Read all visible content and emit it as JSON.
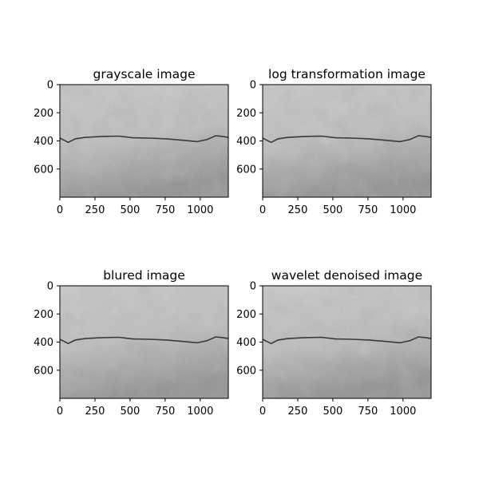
{
  "figure": {
    "background": "#ffffff",
    "panel_colors": {
      "light": "#c9c9c9",
      "dark": "#8c8c8c",
      "crack": "#3a3a3a",
      "axis": "#000000"
    }
  },
  "chart_data": [
    {
      "type": "image",
      "title": "grayscale image",
      "xlabel": "",
      "ylabel": "",
      "xlim": [
        0,
        1200
      ],
      "ylim": [
        800,
        0
      ],
      "xticks": [
        0,
        250,
        500,
        750,
        1000
      ],
      "yticks": [
        0,
        200,
        400,
        600
      ],
      "xtick_labels": [
        "0",
        "250",
        "500",
        "750",
        "1000"
      ],
      "ytick_labels": [
        "0",
        "200",
        "400",
        "600"
      ],
      "grid": false,
      "crack_path": [
        [
          0,
          380
        ],
        [
          60,
          410
        ],
        [
          110,
          385
        ],
        [
          180,
          375
        ],
        [
          300,
          368
        ],
        [
          420,
          366
        ],
        [
          520,
          378
        ],
        [
          640,
          380
        ],
        [
          760,
          385
        ],
        [
          900,
          398
        ],
        [
          980,
          405
        ],
        [
          1050,
          390
        ],
        [
          1110,
          363
        ],
        [
          1160,
          368
        ],
        [
          1200,
          375
        ]
      ]
    },
    {
      "type": "image",
      "title": "log transformation image",
      "xlabel": "",
      "ylabel": "",
      "xlim": [
        0,
        1200
      ],
      "ylim": [
        800,
        0
      ],
      "xticks": [
        0,
        250,
        500,
        750,
        1000
      ],
      "yticks": [
        0,
        200,
        400,
        600
      ],
      "xtick_labels": [
        "0",
        "250",
        "500",
        "750",
        "1000"
      ],
      "ytick_labels": [
        "0",
        "200",
        "400",
        "600"
      ],
      "grid": false,
      "crack_path": [
        [
          0,
          380
        ],
        [
          60,
          410
        ],
        [
          110,
          385
        ],
        [
          180,
          375
        ],
        [
          300,
          368
        ],
        [
          420,
          366
        ],
        [
          520,
          378
        ],
        [
          640,
          380
        ],
        [
          760,
          385
        ],
        [
          900,
          398
        ],
        [
          980,
          405
        ],
        [
          1050,
          390
        ],
        [
          1110,
          363
        ],
        [
          1160,
          368
        ],
        [
          1200,
          375
        ]
      ]
    },
    {
      "type": "image",
      "title": "blured image",
      "xlabel": "",
      "ylabel": "",
      "xlim": [
        0,
        1200
      ],
      "ylim": [
        800,
        0
      ],
      "xticks": [
        0,
        250,
        500,
        750,
        1000
      ],
      "yticks": [
        0,
        200,
        400,
        600
      ],
      "xtick_labels": [
        "0",
        "250",
        "500",
        "750",
        "1000"
      ],
      "ytick_labels": [
        "0",
        "200",
        "400",
        "600"
      ],
      "grid": false,
      "crack_path": [
        [
          0,
          380
        ],
        [
          60,
          410
        ],
        [
          110,
          385
        ],
        [
          180,
          375
        ],
        [
          300,
          368
        ],
        [
          420,
          366
        ],
        [
          520,
          378
        ],
        [
          640,
          380
        ],
        [
          760,
          385
        ],
        [
          900,
          398
        ],
        [
          980,
          405
        ],
        [
          1050,
          390
        ],
        [
          1110,
          363
        ],
        [
          1160,
          368
        ],
        [
          1200,
          375
        ]
      ]
    },
    {
      "type": "image",
      "title": "wavelet denoised image",
      "xlabel": "",
      "ylabel": "",
      "xlim": [
        0,
        1200
      ],
      "ylim": [
        800,
        0
      ],
      "xticks": [
        0,
        250,
        500,
        750,
        1000
      ],
      "yticks": [
        0,
        200,
        400,
        600
      ],
      "xtick_labels": [
        "0",
        "250",
        "500",
        "750",
        "1000"
      ],
      "ytick_labels": [
        "0",
        "200",
        "400",
        "600"
      ],
      "grid": false,
      "crack_path": [
        [
          0,
          380
        ],
        [
          60,
          410
        ],
        [
          110,
          385
        ],
        [
          180,
          375
        ],
        [
          300,
          368
        ],
        [
          420,
          366
        ],
        [
          520,
          378
        ],
        [
          640,
          380
        ],
        [
          760,
          385
        ],
        [
          900,
          398
        ],
        [
          980,
          405
        ],
        [
          1050,
          390
        ],
        [
          1110,
          363
        ],
        [
          1160,
          368
        ],
        [
          1200,
          375
        ]
      ]
    }
  ]
}
